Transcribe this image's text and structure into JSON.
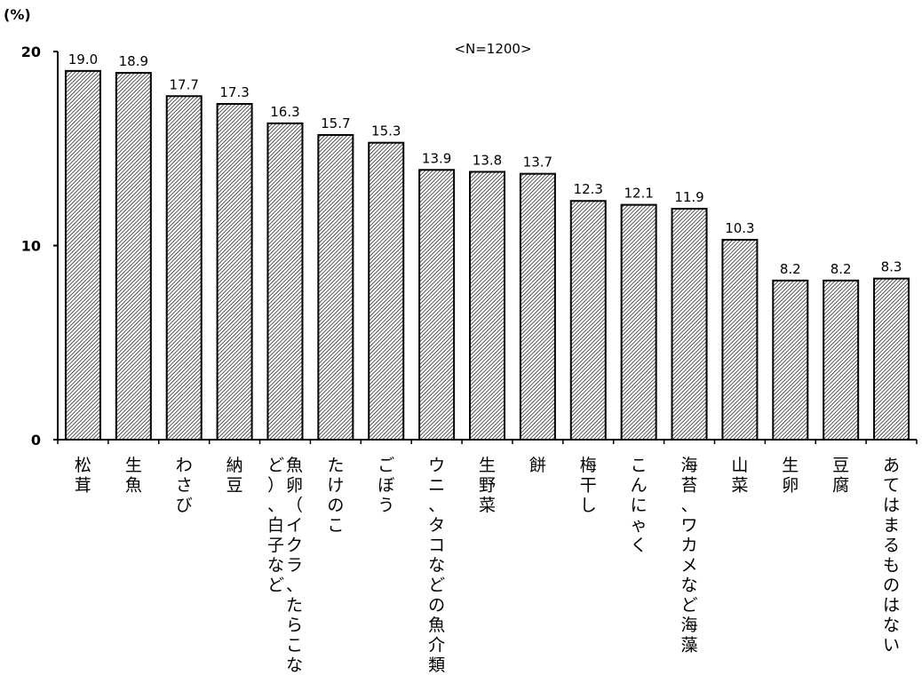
{
  "chart_data": {
    "type": "bar",
    "unit_label": "(%)",
    "annotation": "<N=1200>",
    "ylim": [
      0,
      20
    ],
    "yticks": [
      0,
      10,
      20
    ],
    "grid": false,
    "categories": [
      "松茸",
      "生魚",
      "わさび",
      "納豆",
      "魚卵（イクラ、たらこなど）、白子など",
      "たけのこ",
      "ごぼう",
      "ウニ、タコなどの魚介類",
      "生野菜",
      "餅",
      "梅干し",
      "こんにゃく",
      "海苔、ワカメなど海藻",
      "山菜",
      "生卵",
      "豆腐",
      "あてはまるものはない"
    ],
    "values": [
      19.0,
      18.9,
      17.7,
      17.3,
      16.3,
      15.7,
      15.3,
      13.9,
      13.8,
      13.7,
      12.3,
      12.1,
      11.9,
      10.3,
      8.2,
      8.2,
      8.3
    ],
    "colors": {
      "bar_stroke": "#000000",
      "hatch": "#000000",
      "bar_fill": "#ffffff"
    }
  }
}
